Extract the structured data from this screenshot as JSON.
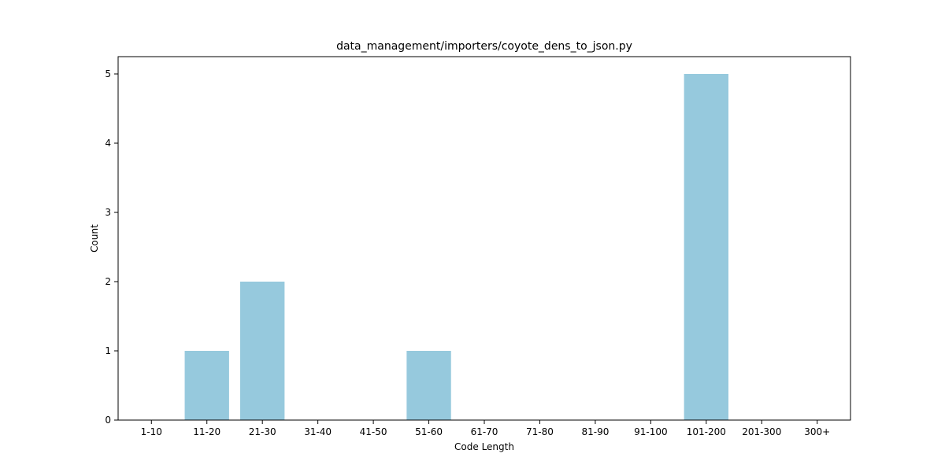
{
  "chart_data": {
    "type": "bar",
    "title": "data_management/importers/coyote_dens_to_json.py",
    "xlabel": "Code Length",
    "ylabel": "Count",
    "categories": [
      "1-10",
      "11-20",
      "21-30",
      "31-40",
      "41-50",
      "51-60",
      "61-70",
      "71-80",
      "81-90",
      "91-100",
      "101-200",
      "201-300",
      "300+"
    ],
    "values": [
      0,
      1,
      2,
      0,
      0,
      1,
      0,
      0,
      0,
      0,
      5,
      0,
      0
    ],
    "ylim": [
      0,
      5.25
    ],
    "yticks": [
      0,
      1,
      2,
      3,
      4,
      5
    ],
    "grid": false,
    "legend": "none",
    "bar_color": "#96c9dd",
    "axis_color": "#000000"
  }
}
